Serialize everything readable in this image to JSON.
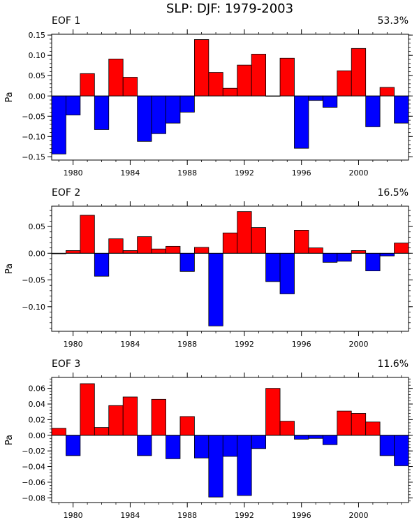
{
  "title": "SLP: DJF: 1979-2003",
  "chart_data": [
    {
      "type": "bar",
      "panel_label": "EOF 1",
      "variance_label": "53.3%",
      "ylabel": "Pa",
      "xlabel": "",
      "x": [
        1979,
        1980,
        1981,
        1982,
        1983,
        1984,
        1985,
        1986,
        1987,
        1988,
        1989,
        1990,
        1991,
        1992,
        1993,
        1994,
        1995,
        1996,
        1997,
        1998,
        1999,
        2000,
        2001,
        2002,
        2003
      ],
      "values": [
        -0.143,
        -0.047,
        0.055,
        -0.083,
        0.091,
        0.046,
        -0.112,
        -0.093,
        -0.067,
        -0.04,
        0.139,
        0.058,
        0.019,
        0.076,
        0.103,
        0.0,
        0.093,
        -0.129,
        -0.011,
        -0.028,
        0.062,
        0.117,
        -0.076,
        0.021,
        -0.067
      ],
      "xlim": [
        1978.5,
        2003.5
      ],
      "ylim": [
        -0.158,
        0.152
      ],
      "yticks": [
        -0.15,
        -0.1,
        -0.05,
        0.0,
        0.05,
        0.1,
        0.15
      ],
      "ytick_labels": [
        "−0.15",
        "−0.10",
        "−0.05",
        "0.00",
        "0.05",
        "0.10",
        "0.15"
      ],
      "positive_color": "#ff0000",
      "negative_color": "#0000ff"
    },
    {
      "type": "bar",
      "panel_label": "EOF 2",
      "variance_label": "16.5%",
      "ylabel": "Pa",
      "xlabel": "",
      "x": [
        1979,
        1980,
        1981,
        1982,
        1983,
        1984,
        1985,
        1986,
        1987,
        1988,
        1989,
        1990,
        1991,
        1992,
        1993,
        1994,
        1995,
        1996,
        1997,
        1998,
        1999,
        2000,
        2001,
        2002,
        2003
      ],
      "values": [
        -0.001,
        0.005,
        0.071,
        -0.043,
        0.027,
        0.005,
        0.031,
        0.008,
        0.013,
        -0.034,
        0.011,
        -0.136,
        0.038,
        0.078,
        0.048,
        -0.053,
        -0.076,
        0.043,
        0.01,
        -0.017,
        -0.015,
        0.005,
        -0.033,
        -0.005,
        0.019
      ],
      "xlim": [
        1978.5,
        2003.5
      ],
      "ylim": [
        -0.146,
        0.088
      ],
      "yticks": [
        -0.1,
        -0.05,
        0.0,
        0.05
      ],
      "ytick_labels": [
        "−0.10",
        "−0.05",
        "0.00",
        "0.05"
      ],
      "positive_color": "#ff0000",
      "negative_color": "#0000ff"
    },
    {
      "type": "bar",
      "panel_label": "EOF 3",
      "variance_label": "11.6%",
      "ylabel": "Pa",
      "xlabel": "",
      "x": [
        1979,
        1980,
        1981,
        1982,
        1983,
        1984,
        1985,
        1986,
        1987,
        1988,
        1989,
        1990,
        1991,
        1992,
        1993,
        1994,
        1995,
        1996,
        1997,
        1998,
        1999,
        2000,
        2001,
        2002,
        2003
      ],
      "values": [
        0.009,
        -0.026,
        0.066,
        0.01,
        0.038,
        0.049,
        -0.026,
        0.046,
        -0.03,
        0.024,
        -0.029,
        -0.079,
        -0.027,
        -0.077,
        -0.017,
        0.06,
        0.018,
        -0.005,
        -0.004,
        -0.012,
        0.031,
        0.028,
        0.017,
        -0.026,
        -0.039
      ],
      "xlim": [
        1978.5,
        2003.5
      ],
      "ylim": [
        -0.086,
        0.074
      ],
      "yticks": [
        -0.08,
        -0.06,
        -0.04,
        -0.02,
        0.0,
        0.02,
        0.04,
        0.06
      ],
      "ytick_labels": [
        "−0.08",
        "−0.06",
        "−0.04",
        "−0.02",
        "0.00",
        "0.02",
        "0.04",
        "0.06"
      ],
      "positive_color": "#ff0000",
      "negative_color": "#0000ff"
    }
  ],
  "xtick_labels": [
    "1980",
    "1984",
    "1988",
    "1992",
    "1996",
    "2000"
  ],
  "xtick_values": [
    1980,
    1984,
    1988,
    1992,
    1996,
    2000
  ]
}
